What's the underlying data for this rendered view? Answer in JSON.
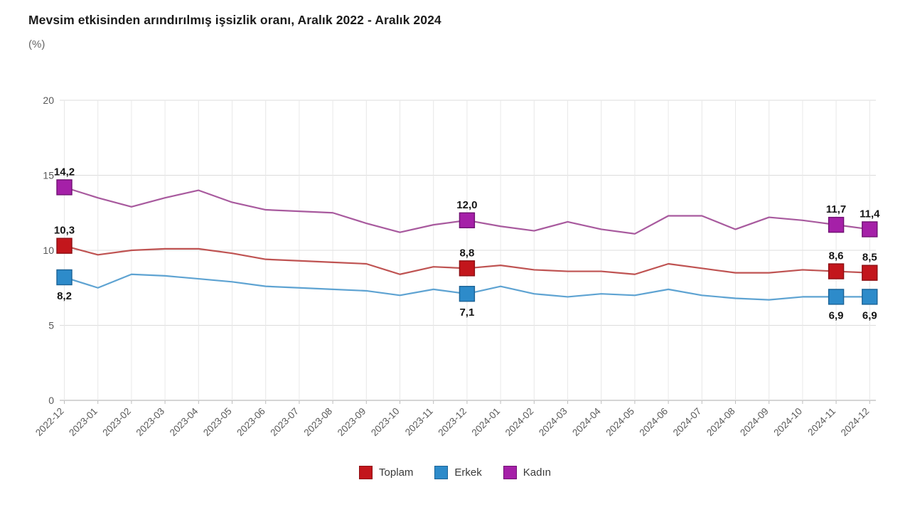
{
  "header": {
    "title": "Mevsim etkisinden arındırılmış işsizlik oranı, Aralık 2022 - Aralık 2024",
    "unit": "(%)"
  },
  "chart_data": {
    "type": "line",
    "title": "Mevsim etkisinden arındırılmış işsizlik oranı, Aralık 2022 - Aralık 2024",
    "ylabel": "(%)",
    "ylim": [
      0,
      20
    ],
    "yticks": [
      0,
      5,
      10,
      15,
      20
    ],
    "grid": true,
    "legend_position": "bottom",
    "decimal_separator": ",",
    "x": [
      "2022-12",
      "2023-01",
      "2023-02",
      "2023-03",
      "2023-04",
      "2023-05",
      "2023-06",
      "2023-07",
      "2023-08",
      "2023-09",
      "2023-10",
      "2023-11",
      "2023-12",
      "2024-01",
      "2024-02",
      "2024-03",
      "2024-04",
      "2024-05",
      "2024-06",
      "2024-07",
      "2024-08",
      "2024-09",
      "2024-10",
      "2024-11",
      "2024-12"
    ],
    "annotated_x": [
      "2022-12",
      "2023-12",
      "2024-11",
      "2024-12"
    ],
    "series": [
      {
        "name": "Kadın",
        "color": "#a520a8",
        "border": "#701273",
        "line": "#a85a9e",
        "label_side": "above",
        "values": [
          14.2,
          13.5,
          12.9,
          13.5,
          14.0,
          13.2,
          12.7,
          12.6,
          12.5,
          11.8,
          11.2,
          11.7,
          12.0,
          11.6,
          11.3,
          11.9,
          11.4,
          11.1,
          12.3,
          12.3,
          11.4,
          12.2,
          12.0,
          11.7,
          11.4
        ]
      },
      {
        "name": "Toplam",
        "color": "#c3161c",
        "border": "#8c0f13",
        "line": "#bf5352",
        "label_side": "above",
        "values": [
          10.3,
          9.7,
          10.0,
          10.1,
          10.1,
          9.8,
          9.4,
          9.3,
          9.2,
          9.1,
          8.4,
          8.9,
          8.8,
          9.0,
          8.7,
          8.6,
          8.6,
          8.4,
          9.1,
          8.8,
          8.5,
          8.5,
          8.7,
          8.6,
          8.5
        ]
      },
      {
        "name": "Erkek",
        "color": "#2d8bca",
        "border": "#1c6396",
        "line": "#5ea3d2",
        "label_side": "below",
        "values": [
          8.2,
          7.5,
          8.4,
          8.3,
          8.1,
          7.9,
          7.6,
          7.5,
          7.4,
          7.3,
          7.0,
          7.4,
          7.1,
          7.6,
          7.1,
          6.9,
          7.1,
          7.0,
          7.4,
          7.0,
          6.8,
          6.7,
          6.9,
          6.9,
          6.9
        ]
      }
    ],
    "legend_order": [
      "Toplam",
      "Erkek",
      "Kadın"
    ]
  }
}
